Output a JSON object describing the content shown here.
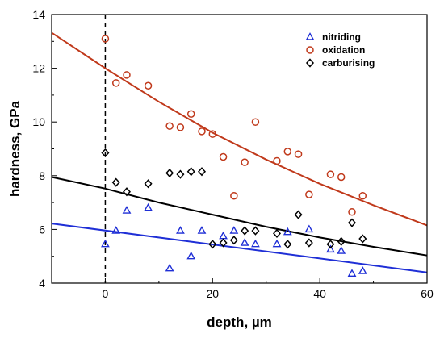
{
  "chart_data": {
    "type": "scatter",
    "xlabel": "depth, µm",
    "ylabel": "hardness, GPa",
    "xlim": [
      -10,
      60
    ],
    "ylim": [
      4,
      14
    ],
    "xticks": [
      0,
      20,
      40,
      60
    ],
    "yticks": [
      4,
      6,
      8,
      10,
      12,
      14
    ],
    "grid": false,
    "legend_position": "top-right",
    "reference_line": {
      "x": 0,
      "style": "dashed",
      "color": "#000000"
    },
    "series": [
      {
        "name": "nitriding",
        "marker": "triangle",
        "color": "#1f2fd6",
        "points": [
          [
            0,
            5.45
          ],
          [
            2,
            5.95
          ],
          [
            4,
            6.7
          ],
          [
            8,
            6.8
          ],
          [
            12,
            4.55
          ],
          [
            14,
            5.95
          ],
          [
            16,
            5.0
          ],
          [
            18,
            5.95
          ],
          [
            22,
            5.75
          ],
          [
            24,
            5.95
          ],
          [
            26,
            5.5
          ],
          [
            28,
            5.45
          ],
          [
            32,
            5.45
          ],
          [
            34,
            5.9
          ],
          [
            38,
            6.0
          ],
          [
            42,
            5.25
          ],
          [
            44,
            5.2
          ],
          [
            46,
            4.35
          ],
          [
            48,
            4.45
          ]
        ],
        "fit_curve": [
          [
            -10,
            6.22
          ],
          [
            60,
            4.4
          ]
        ],
        "fit_color": "#1f2fd6"
      },
      {
        "name": "oxidation",
        "marker": "circle",
        "color": "#c0391b",
        "points": [
          [
            0,
            13.1
          ],
          [
            2,
            11.45
          ],
          [
            4,
            11.75
          ],
          [
            8,
            11.35
          ],
          [
            12,
            9.85
          ],
          [
            14,
            9.8
          ],
          [
            16,
            10.3
          ],
          [
            18,
            9.65
          ],
          [
            20,
            9.55
          ],
          [
            22,
            8.7
          ],
          [
            24,
            7.25
          ],
          [
            26,
            8.5
          ],
          [
            28,
            10.0
          ],
          [
            32,
            8.55
          ],
          [
            34,
            8.9
          ],
          [
            36,
            8.8
          ],
          [
            38,
            7.3
          ],
          [
            42,
            8.05
          ],
          [
            44,
            7.95
          ],
          [
            46,
            6.65
          ],
          [
            48,
            7.25
          ]
        ],
        "fit_curve": [
          [
            -10,
            13.32
          ],
          [
            0,
            12.0
          ],
          [
            10,
            10.75
          ],
          [
            20,
            9.6
          ],
          [
            30,
            8.6
          ],
          [
            40,
            7.7
          ],
          [
            50,
            6.9
          ],
          [
            60,
            6.15
          ]
        ],
        "fit_color": "#c0391b"
      },
      {
        "name": "carburising",
        "marker": "diamond",
        "color": "#000000",
        "points": [
          [
            0,
            8.85
          ],
          [
            2,
            7.75
          ],
          [
            4,
            7.4
          ],
          [
            8,
            7.7
          ],
          [
            12,
            8.1
          ],
          [
            14,
            8.05
          ],
          [
            16,
            8.15
          ],
          [
            18,
            8.15
          ],
          [
            20,
            5.45
          ],
          [
            22,
            5.5
          ],
          [
            24,
            5.6
          ],
          [
            26,
            5.95
          ],
          [
            28,
            5.95
          ],
          [
            32,
            5.85
          ],
          [
            34,
            5.45
          ],
          [
            36,
            6.55
          ],
          [
            38,
            5.5
          ],
          [
            42,
            5.45
          ],
          [
            44,
            5.55
          ],
          [
            46,
            6.25
          ],
          [
            48,
            5.65
          ]
        ],
        "fit_curve": [
          [
            -10,
            7.95
          ],
          [
            0,
            7.52
          ],
          [
            10,
            7.0
          ],
          [
            20,
            6.55
          ],
          [
            30,
            6.1
          ],
          [
            40,
            5.7
          ],
          [
            50,
            5.35
          ],
          [
            60,
            5.03
          ]
        ],
        "fit_color": "#000000"
      }
    ]
  }
}
